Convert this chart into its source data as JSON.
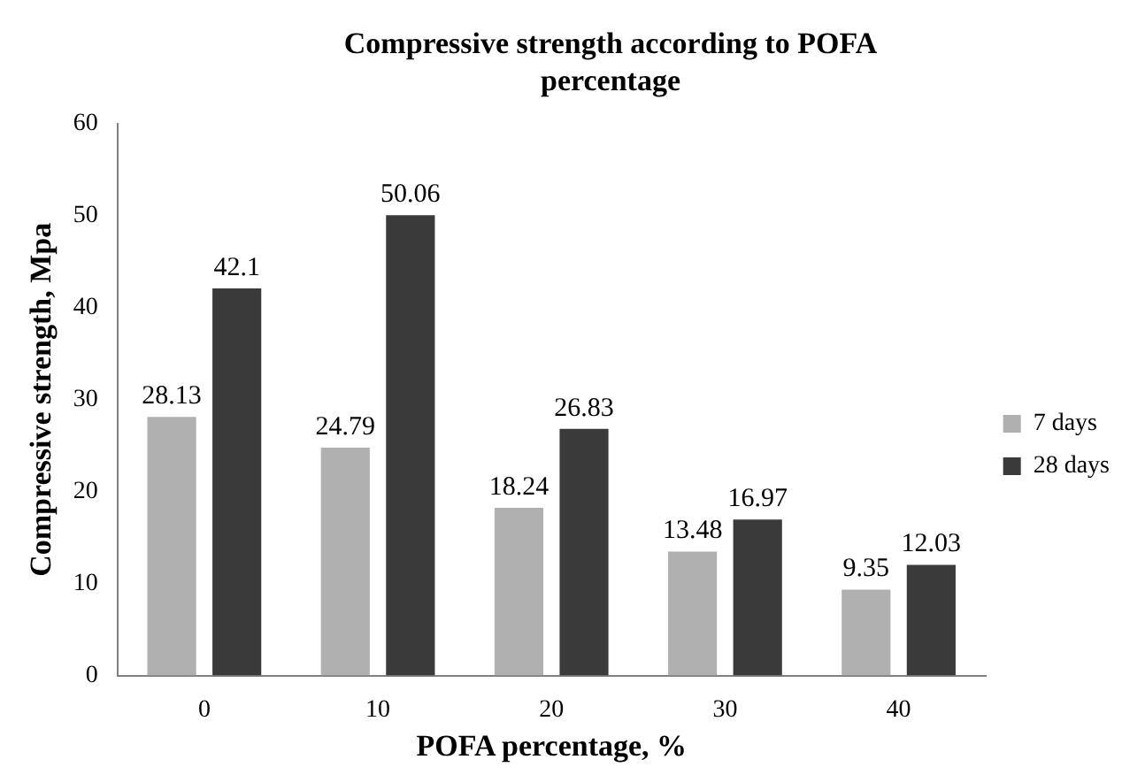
{
  "chart_data": {
    "type": "bar",
    "title": "Compressive strength according to POFA percentage",
    "xlabel": "POFA percentage, %",
    "ylabel": "Compressive strength, Mpa",
    "categories": [
      "0",
      "10",
      "20",
      "30",
      "40"
    ],
    "series": [
      {
        "name": "7 days",
        "color": "#b0b0b0",
        "values": [
          28.13,
          24.79,
          18.24,
          13.48,
          9.35
        ]
      },
      {
        "name": "28 days",
        "color": "#3a3a3a",
        "values": [
          42.1,
          50.06,
          26.83,
          16.97,
          12.03
        ]
      }
    ],
    "ylim": [
      0,
      60
    ],
    "yticks": [
      0,
      10,
      20,
      30,
      40,
      50,
      60
    ],
    "grid": false,
    "legend": "right",
    "data_labels": true
  }
}
